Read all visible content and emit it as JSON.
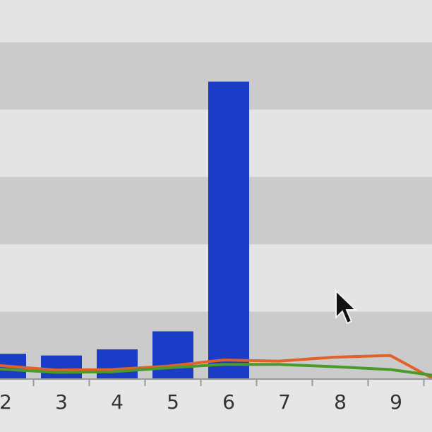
{
  "chart_data": {
    "type": "bar",
    "categories": [
      "2",
      "3",
      "4",
      "5",
      "6",
      "7",
      "8",
      "9"
    ],
    "series": [
      {
        "type": "bar",
        "values": [
          4.5,
          4.2,
          5.3,
          8.5,
          53,
          0,
          0,
          0
        ]
      },
      {
        "type": "line",
        "values": [
          2.4,
          1.6,
          1.7,
          2.3,
          3.4,
          3.2,
          3.9,
          4.2
        ]
      },
      {
        "type": "line",
        "values": [
          1.8,
          1.2,
          1.3,
          2.0,
          2.6,
          2.6,
          2.2,
          1.7
        ]
      }
    ],
    "ylim": [
      0,
      60
    ],
    "grid": true,
    "colors": {
      "bar": "#1a3cc6",
      "line_orange": "#e0622a",
      "line_green": "#4c9a2a",
      "band_light": "#e4e4e4",
      "band_dark": "#cbcbcb",
      "axis": "#9a9a9a"
    }
  },
  "cursor": {
    "name": "mouse-pointer-icon"
  }
}
